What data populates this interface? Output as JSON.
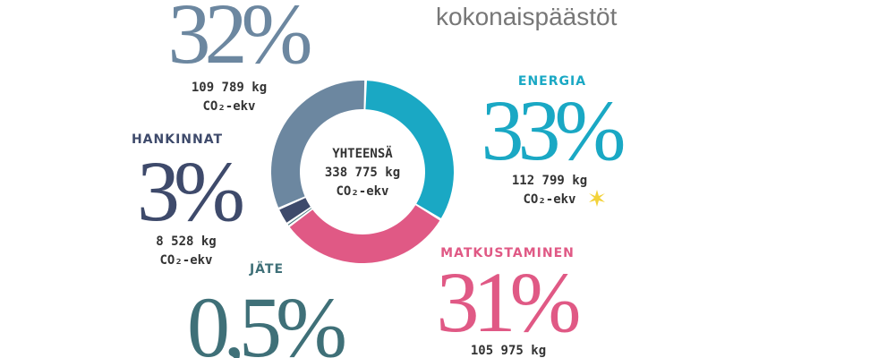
{
  "chart_data": {
    "type": "pie",
    "title": "kokonaispäästöt",
    "center_label": "YHTEENSÄ",
    "total_label": "338 775 kg",
    "unit": "CO₂-ekv",
    "categories": [
      "ENERGIA",
      "MATKUSTAMINEN",
      "JÄTE",
      "HANKINNAT",
      null
    ],
    "values": [
      33,
      31,
      0.5,
      3,
      32
    ],
    "value_labels": [
      "33%",
      "31%",
      "0,5%",
      "3%",
      "32%"
    ],
    "amount_labels": [
      "112 799 kg",
      "105 975 kg",
      null,
      "8 528 kg",
      "109 789 kg"
    ],
    "colors": [
      "#1aa8c4",
      "#e05985",
      "#3f7078",
      "#3e4a6b",
      "#6c87a0"
    ]
  }
}
